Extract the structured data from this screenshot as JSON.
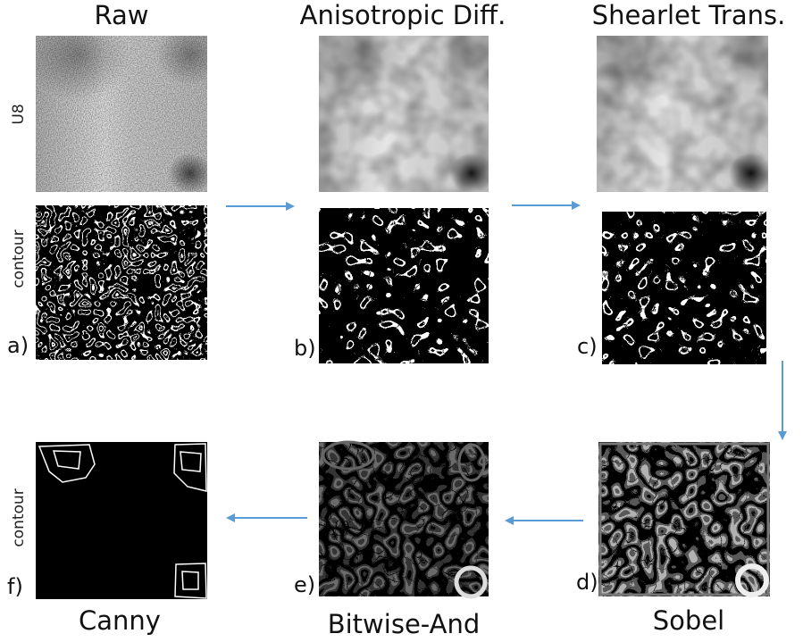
{
  "titles": {
    "top": [
      "Raw",
      "Anisotropic Diff.",
      "Shearlet Trans."
    ],
    "bottom": [
      "Canny",
      "Bitwise-And",
      "Sobel"
    ]
  },
  "row_labels": [
    "U8",
    "contour",
    "contour"
  ],
  "panel_labels": [
    "a)",
    "b)",
    "c)",
    "d)",
    "e)",
    "f)"
  ]
}
